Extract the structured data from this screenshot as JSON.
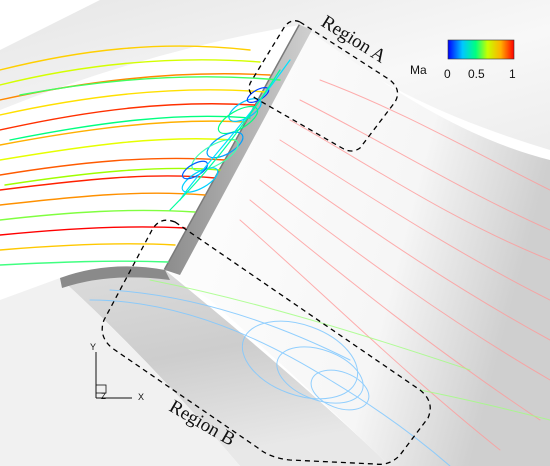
{
  "regions": {
    "a_label": "Region A",
    "b_label": "Region B"
  },
  "legend": {
    "variable": "Ma",
    "ticks": [
      "0",
      "0.5",
      "1"
    ],
    "colormap": [
      "#0000ff",
      "#00c8ff",
      "#00ff80",
      "#c8ff00",
      "#ffb000",
      "#ff0000"
    ]
  },
  "axes": {
    "y_label": "Y",
    "z_label": "Z",
    "x_label": "X"
  },
  "colors": {
    "surface_light": "#f4f4f4",
    "surface_shadow": "#9a9a9a",
    "region_outline": "#000000"
  }
}
